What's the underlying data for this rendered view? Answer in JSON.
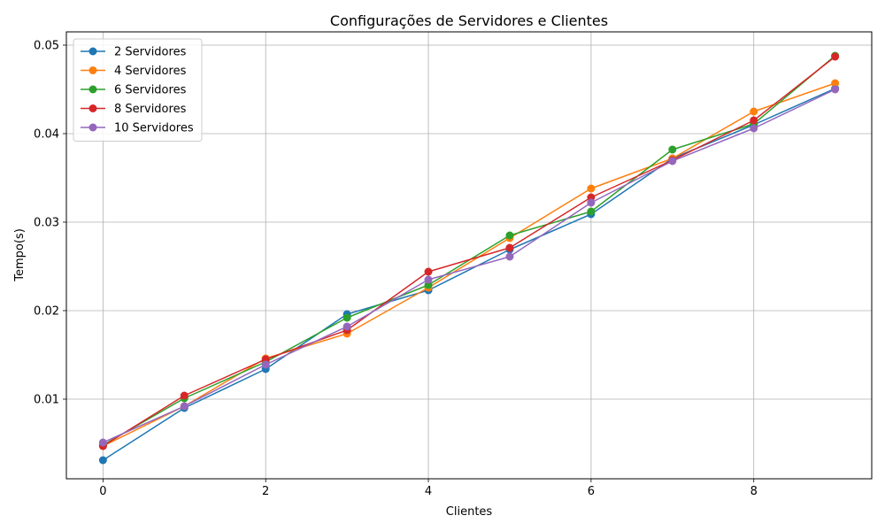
{
  "chart_data": {
    "type": "line",
    "title": "Configurações de Servidores e Clientes",
    "xlabel": "Clientes",
    "ylabel": "Tempo(s)",
    "x": [
      0,
      1,
      2,
      3,
      4,
      5,
      6,
      7,
      8,
      9
    ],
    "xlim": [
      -0.45,
      9.45
    ],
    "ylim": [
      0.001,
      0.0515
    ],
    "xticks": [
      0,
      2,
      4,
      6,
      8
    ],
    "xtick_labels": [
      "0",
      "2",
      "4",
      "6",
      "8"
    ],
    "yticks": [
      0.01,
      0.02,
      0.03,
      0.04,
      0.05
    ],
    "ytick_labels": [
      "0.01",
      "0.02",
      "0.03",
      "0.04",
      "0.05"
    ],
    "grid": true,
    "legend_position": "top-left",
    "series": [
      {
        "name": "2 Servidores",
        "color": "#1f77b4",
        "values": [
          0.0031,
          0.009,
          0.0134,
          0.0196,
          0.0223,
          0.0269,
          0.0309,
          0.0372,
          0.041,
          0.0451
        ]
      },
      {
        "name": "4 Servidores",
        "color": "#ff7f0e",
        "values": [
          0.0047,
          0.0092,
          0.0146,
          0.0174,
          0.0226,
          0.0282,
          0.0338,
          0.0372,
          0.0425,
          0.0457
        ]
      },
      {
        "name": "6 Servidores",
        "color": "#2ca02c",
        "values": [
          0.0048,
          0.0101,
          0.0142,
          0.0192,
          0.0229,
          0.0285,
          0.0312,
          0.0382,
          0.0411,
          0.0488
        ]
      },
      {
        "name": "8 Servidores",
        "color": "#d62728",
        "values": [
          0.0047,
          0.0104,
          0.0145,
          0.0178,
          0.0244,
          0.0271,
          0.0328,
          0.037,
          0.0415,
          0.0487
        ]
      },
      {
        "name": "10 Servidores",
        "color": "#9467bd",
        "values": [
          0.0051,
          0.0092,
          0.0139,
          0.0182,
          0.0235,
          0.0261,
          0.0322,
          0.0369,
          0.0406,
          0.045
        ]
      }
    ]
  }
}
